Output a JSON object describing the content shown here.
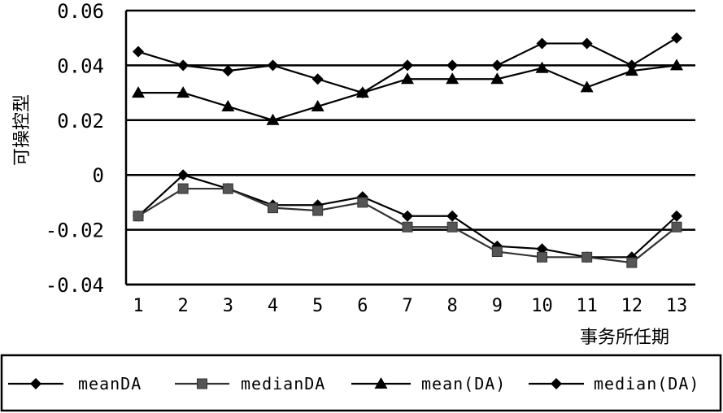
{
  "chart_data": {
    "type": "line",
    "ylabel": "可操控型",
    "xlabel": "事务所任期",
    "x": [
      1,
      2,
      3,
      4,
      5,
      6,
      7,
      8,
      9,
      10,
      11,
      12,
      13
    ],
    "x_tick_labels": [
      "1",
      "2",
      "3",
      "4",
      "5",
      "6",
      "7",
      "8",
      "9",
      "10",
      "11",
      "12",
      "13"
    ],
    "y_tick_labels": [
      "-0.04",
      "-0.02",
      "0",
      "0.02",
      "0.04",
      "0.06"
    ],
    "y_tick_values": [
      -0.04,
      -0.02,
      0,
      0.02,
      0.04,
      0.06
    ],
    "ylim": [
      -0.04,
      0.06
    ],
    "grid": "horizontal",
    "legend_position": "bottom",
    "series": [
      {
        "name": "meanDA",
        "values": [
          -0.015,
          0.0,
          -0.005,
          -0.011,
          -0.011,
          -0.008,
          -0.015,
          -0.015,
          -0.026,
          -0.027,
          -0.03,
          -0.03,
          -0.015
        ],
        "marker": "diamond",
        "color": "#000000"
      },
      {
        "name": "medianDA",
        "values": [
          -0.015,
          -0.005,
          -0.005,
          -0.012,
          -0.013,
          -0.01,
          -0.019,
          -0.019,
          -0.028,
          -0.03,
          -0.03,
          -0.032,
          -0.019
        ],
        "marker": "square",
        "color": "#333333"
      },
      {
        "name": "mean(DA)",
        "values": [
          0.03,
          0.03,
          0.025,
          0.02,
          0.025,
          0.03,
          0.035,
          0.035,
          0.035,
          0.039,
          0.032,
          0.038,
          0.04
        ],
        "marker": "triangle",
        "color": "#000000"
      },
      {
        "name": "median(DA)",
        "values": [
          0.045,
          0.04,
          0.038,
          0.04,
          0.035,
          0.03,
          0.04,
          0.04,
          0.04,
          0.048,
          0.048,
          0.04,
          0.05
        ],
        "marker": "diamond",
        "color": "#000000"
      }
    ]
  }
}
